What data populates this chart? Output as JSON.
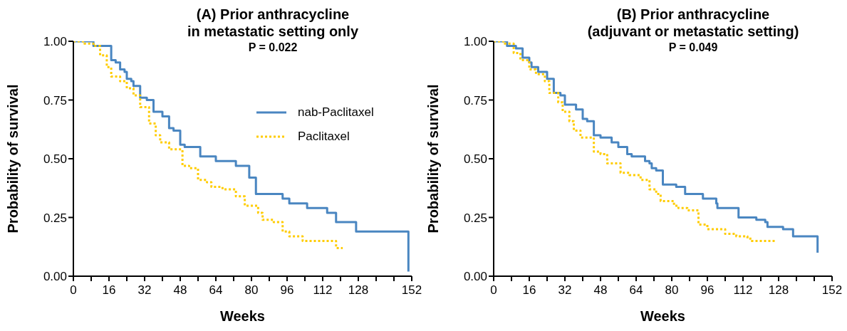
{
  "chart_data": [
    {
      "type": "step",
      "title": "(A) Prior anthracycline\nin metastatic setting only",
      "subtitle": "P = 0.022",
      "xlabel": "Weeks",
      "ylabel": "Probability of survival",
      "xlim": [
        0,
        152
      ],
      "ylim": [
        0,
        1
      ],
      "xticks": [
        0,
        {
          "value": 8,
          "label": null
        },
        16,
        {
          "value": 24,
          "label": null
        },
        32,
        {
          "value": 40,
          "label": null
        },
        48,
        {
          "value": 56,
          "label": null
        },
        64,
        {
          "value": 72,
          "label": null
        },
        80,
        {
          "value": 88,
          "label": null
        },
        96,
        {
          "value": 104,
          "label": null
        },
        112,
        {
          "value": 120,
          "label": null
        },
        128,
        {
          "value": 136,
          "label": null
        },
        {
          "value": 144,
          "label": null
        },
        152
      ],
      "yticks": [
        {
          "value": 0,
          "label": "0.00"
        },
        {
          "value": 0.25,
          "label": "0.25"
        },
        {
          "value": 0.5,
          "label": "0.50"
        },
        {
          "value": 0.75,
          "label": "0.75"
        },
        {
          "value": 1,
          "label": "1.00"
        }
      ],
      "grid": false,
      "legend": "right",
      "marker": "none",
      "series": [
        {
          "name": "nab-Paclitaxel",
          "color": "#4a86c1",
          "line_style": "solid",
          "x": [
            0,
            7,
            9,
            13,
            17,
            19,
            21,
            23,
            24,
            26,
            27,
            30,
            33,
            36,
            40,
            43,
            45,
            48,
            50,
            54,
            57,
            62,
            64,
            70,
            73,
            79,
            82,
            93,
            94,
            97,
            104,
            105,
            112,
            114,
            118,
            123,
            127,
            150,
            150.5
          ],
          "values": [
            1.0,
            1.0,
            0.98,
            0.98,
            0.92,
            0.91,
            0.88,
            0.87,
            0.84,
            0.83,
            0.81,
            0.76,
            0.75,
            0.7,
            0.68,
            0.63,
            0.62,
            0.56,
            0.55,
            0.55,
            0.51,
            0.51,
            0.49,
            0.49,
            0.47,
            0.42,
            0.35,
            0.35,
            0.33,
            0.31,
            0.31,
            0.29,
            0.29,
            0.27,
            0.23,
            0.23,
            0.19,
            0.19,
            0.02
          ]
        },
        {
          "name": "Paclitaxel",
          "color": "#ffcc00",
          "line_style": "dotted",
          "x": [
            0,
            5,
            9,
            12,
            15,
            17,
            21,
            24,
            27,
            30,
            34,
            37,
            39,
            43,
            46,
            49,
            52,
            56,
            60,
            62,
            67,
            73,
            77,
            83,
            85,
            90,
            94,
            97,
            103,
            111,
            118,
            121
          ],
          "values": [
            1.0,
            0.99,
            0.98,
            0.94,
            0.89,
            0.85,
            0.83,
            0.8,
            0.77,
            0.72,
            0.65,
            0.6,
            0.57,
            0.54,
            0.54,
            0.47,
            0.46,
            0.41,
            0.4,
            0.38,
            0.37,
            0.34,
            0.3,
            0.27,
            0.24,
            0.23,
            0.19,
            0.17,
            0.15,
            0.15,
            0.12,
            0.12
          ]
        }
      ]
    },
    {
      "type": "step",
      "title": "(B) Prior anthracycline\n(adjuvant or metastatic setting)",
      "subtitle": "P = 0.049",
      "xlabel": "Weeks",
      "ylabel": "Probability of survival",
      "xlim": [
        0,
        152
      ],
      "ylim": [
        0,
        1
      ],
      "xticks": [
        0,
        {
          "value": 8,
          "label": null
        },
        16,
        {
          "value": 24,
          "label": null
        },
        32,
        {
          "value": 40,
          "label": null
        },
        48,
        {
          "value": 56,
          "label": null
        },
        64,
        {
          "value": 72,
          "label": null
        },
        80,
        {
          "value": 88,
          "label": null
        },
        96,
        {
          "value": 104,
          "label": null
        },
        112,
        {
          "value": 120,
          "label": null
        },
        128,
        {
          "value": 136,
          "label": null
        },
        {
          "value": 144,
          "label": null
        },
        152
      ],
      "yticks": [
        {
          "value": 0,
          "label": "0.00"
        },
        {
          "value": 0.25,
          "label": "0.25"
        },
        {
          "value": 0.5,
          "label": "0.50"
        },
        {
          "value": 0.75,
          "label": "0.75"
        },
        {
          "value": 1,
          "label": "1.00"
        }
      ],
      "grid": false,
      "marker": "none",
      "series": [
        {
          "color": "#4a86c1",
          "line_style": "solid",
          "x": [
            0,
            6,
            10,
            13,
            16,
            17,
            20,
            24,
            27,
            30,
            32,
            35,
            37,
            40,
            42,
            45,
            48,
            53,
            56,
            60,
            62,
            67,
            68,
            70,
            71,
            73,
            76,
            82,
            86,
            89,
            94,
            100,
            100.5,
            106,
            110,
            118,
            122,
            123,
            129,
            130,
            134,
            134.5,
            145,
            145.5
          ],
          "values": [
            1.0,
            0.98,
            0.97,
            0.93,
            0.91,
            0.89,
            0.87,
            0.84,
            0.78,
            0.77,
            0.73,
            0.73,
            0.71,
            0.67,
            0.66,
            0.6,
            0.59,
            0.57,
            0.55,
            0.52,
            0.51,
            0.51,
            0.49,
            0.48,
            0.46,
            0.45,
            0.39,
            0.38,
            0.35,
            0.35,
            0.33,
            0.31,
            0.29,
            0.29,
            0.25,
            0.24,
            0.23,
            0.21,
            0.21,
            0.2,
            0.2,
            0.17,
            0.17,
            0.1
          ]
        },
        {
          "color": "#ffcc00",
          "line_style": "dotted",
          "x": [
            0,
            5,
            9,
            12,
            16,
            19,
            23,
            25,
            29,
            31,
            34,
            36,
            39,
            43,
            45,
            48,
            51,
            57,
            61,
            66,
            70,
            73,
            75,
            81,
            83,
            87,
            92,
            96,
            102,
            104,
            109,
            114,
            116,
            127
          ],
          "values": [
            1.0,
            0.99,
            0.95,
            0.92,
            0.88,
            0.86,
            0.83,
            0.78,
            0.74,
            0.7,
            0.66,
            0.62,
            0.59,
            0.59,
            0.53,
            0.52,
            0.48,
            0.44,
            0.43,
            0.41,
            0.37,
            0.35,
            0.32,
            0.3,
            0.29,
            0.28,
            0.22,
            0.2,
            0.2,
            0.18,
            0.17,
            0.16,
            0.15,
            0.15
          ]
        }
      ]
    }
  ]
}
